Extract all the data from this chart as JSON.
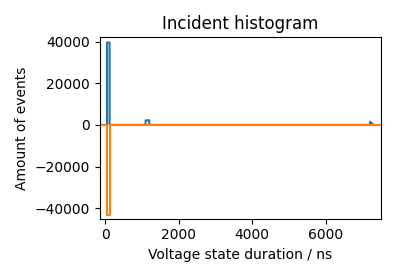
{
  "title": "Incident histogram",
  "xlabel": "Voltage state duration / ns",
  "ylabel": "Amount of events",
  "xlim": [
    -150,
    7500
  ],
  "ylim": [
    -45000,
    42000
  ],
  "blue_x": [
    50,
    50,
    120,
    120,
    1100,
    1100,
    1200,
    1200,
    7200,
    7200,
    7300
  ],
  "blue_y": [
    0,
    39500,
    39500,
    0,
    0,
    2200,
    2200,
    0,
    0,
    1500,
    0
  ],
  "orange_x": [
    -150,
    50,
    50,
    120,
    120,
    1100,
    1100,
    7200,
    7200,
    7500
  ],
  "orange_y": [
    0,
    0,
    -43000,
    -43000,
    0,
    0,
    -200,
    -200,
    0,
    0
  ],
  "blue_color": "#1f77b4",
  "orange_color": "#ff7f0e",
  "figsize": [
    3.96,
    2.77
  ],
  "dpi": 100,
  "xticks": [
    0,
    2000,
    4000,
    6000
  ],
  "yticks": [
    -40000,
    -20000,
    0,
    20000,
    40000
  ]
}
